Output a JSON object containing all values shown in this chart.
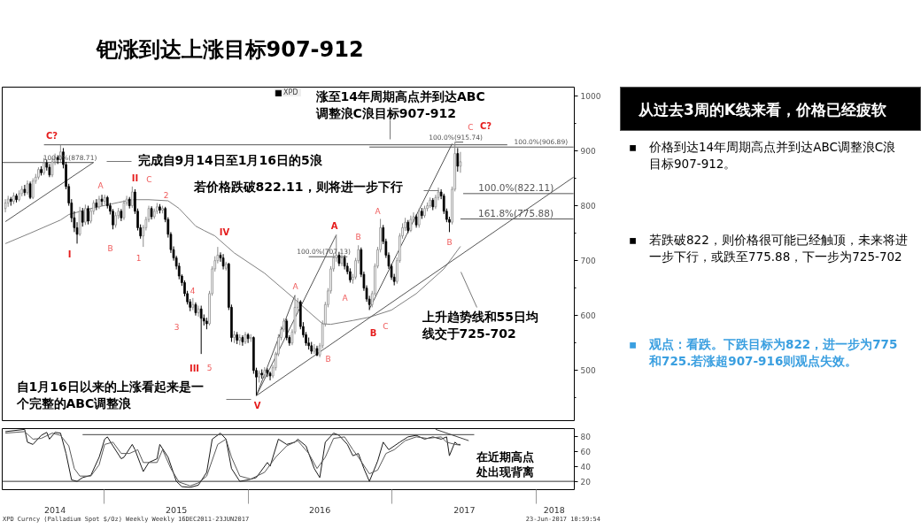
{
  "chart_data": [
    {
      "type": "candlestick",
      "title": "钯涨到达上涨目标907-912",
      "legend": "top",
      "tick_labels": "y",
      "xlim": [
        "2014-04-17",
        "2018-04-08"
      ],
      "ylim": [
        407,
        1016
      ],
      "yticks": [
        {
          "value": 450,
          "label": null
        },
        500,
        {
          "value": 550,
          "label": null
        },
        600,
        {
          "value": 650,
          "label": null
        },
        700,
        {
          "value": 750,
          "label": null
        },
        800,
        {
          "value": 850,
          "label": null
        },
        900,
        {
          "value": 950,
          "label": null
        },
        1000
      ],
      "series": [
        {
          "name": "XPD",
          "type": "candlestick",
          "x": [
            "2014-04-25",
            "2014-05-02",
            "2014-05-09",
            "2014-05-16",
            "2014-05-23",
            "2014-05-30",
            "2014-06-06",
            "2014-06-13",
            "2014-06-20",
            "2014-06-27",
            "2014-07-04",
            "2014-07-11",
            "2014-07-18",
            "2014-07-25",
            "2014-08-01",
            "2014-08-08",
            "2014-08-15",
            "2014-08-22",
            "2014-08-29",
            "2014-09-05",
            "2014-09-12",
            "2014-09-19",
            "2014-09-26",
            "2014-10-03",
            "2014-10-10",
            "2014-10-17",
            "2014-10-24",
            "2014-10-31",
            "2014-11-07",
            "2014-11-14",
            "2014-11-21",
            "2014-11-28",
            "2014-12-05",
            "2014-12-12",
            "2014-12-19",
            "2014-12-26",
            "2015-01-02",
            "2015-01-09",
            "2015-01-16",
            "2015-01-23",
            "2015-01-30",
            "2015-02-06",
            "2015-02-13",
            "2015-02-20",
            "2015-02-27",
            "2015-03-06",
            "2015-03-13",
            "2015-03-20",
            "2015-03-27",
            "2015-04-03",
            "2015-04-10",
            "2015-04-17",
            "2015-04-24",
            "2015-05-01",
            "2015-05-08",
            "2015-05-15",
            "2015-05-22",
            "2015-05-29",
            "2015-06-05",
            "2015-06-12",
            "2015-06-19",
            "2015-06-26",
            "2015-07-03",
            "2015-07-10",
            "2015-07-17",
            "2015-07-24",
            "2015-07-31",
            "2015-08-07",
            "2015-08-14",
            "2015-08-21",
            "2015-08-28",
            "2015-09-04",
            "2015-09-11",
            "2015-09-18",
            "2015-09-25",
            "2015-10-02",
            "2015-10-09",
            "2015-10-16",
            "2015-10-23",
            "2015-10-30",
            "2015-11-06",
            "2015-11-13",
            "2015-11-20",
            "2015-11-27",
            "2015-12-04",
            "2015-12-11",
            "2015-12-18",
            "2015-12-25",
            "2016-01-01",
            "2016-01-08",
            "2016-01-15",
            "2016-01-22",
            "2016-01-29",
            "2016-02-05",
            "2016-02-12",
            "2016-02-19",
            "2016-02-26",
            "2016-03-04",
            "2016-03-11",
            "2016-03-18",
            "2016-03-25",
            "2016-04-01",
            "2016-04-08",
            "2016-04-15",
            "2016-04-22",
            "2016-04-29",
            "2016-05-06",
            "2016-05-13",
            "2016-05-20",
            "2016-05-27",
            "2016-06-03",
            "2016-06-10",
            "2016-06-17",
            "2016-06-24",
            "2016-07-01",
            "2016-07-08",
            "2016-07-15",
            "2016-07-22",
            "2016-07-29",
            "2016-08-05",
            "2016-08-12",
            "2016-08-19",
            "2016-08-26",
            "2016-09-02",
            "2016-09-09",
            "2016-09-16",
            "2016-09-23",
            "2016-09-30",
            "2016-10-07",
            "2016-10-14",
            "2016-10-21",
            "2016-10-28",
            "2016-11-04",
            "2016-11-11",
            "2016-11-18",
            "2016-11-25",
            "2016-12-02",
            "2016-12-09",
            "2016-12-16",
            "2016-12-23",
            "2016-12-30",
            "2017-01-06",
            "2017-01-13",
            "2017-01-20",
            "2017-01-27",
            "2017-02-03",
            "2017-02-10",
            "2017-02-17",
            "2017-02-24",
            "2017-03-03",
            "2017-03-10",
            "2017-03-17",
            "2017-03-24",
            "2017-03-31",
            "2017-04-07",
            "2017-04-14",
            "2017-04-21",
            "2017-04-28",
            "2017-05-05",
            "2017-05-12",
            "2017-05-19",
            "2017-05-26",
            "2017-06-02",
            "2017-06-09",
            "2017-06-16",
            "2017-06-23"
          ],
          "ohlc": [
            [
              795,
              812,
              788,
              805
            ],
            [
              805,
              818,
              798,
              812
            ],
            [
              812,
              816,
              800,
              808
            ],
            [
              808,
              824,
              803,
              818
            ],
            [
              818,
              822,
              806,
              811
            ],
            [
              811,
              828,
              808,
              822
            ],
            [
              822,
              836,
              817,
              830
            ],
            [
              830,
              838,
              818,
              824
            ],
            [
              824,
              846,
              820,
              840
            ],
            [
              840,
              844,
              812,
              815
            ],
            [
              815,
              850,
              812,
              845
            ],
            [
              845,
              858,
              840,
              852
            ],
            [
              852,
              870,
              848,
              866
            ],
            [
              866,
              872,
              855,
              860
            ],
            [
              860,
              887,
              856,
              878
            ],
            [
              878,
              884,
              864,
              870
            ],
            [
              870,
              876,
              852,
              856
            ],
            [
              856,
              886,
              852,
              880
            ],
            [
              880,
              895,
              874,
              888
            ],
            [
              888,
              892,
              876,
              884
            ],
            [
              884,
              911,
              880,
              898
            ],
            [
              898,
              905,
              868,
              875
            ],
            [
              875,
              880,
              830,
              835
            ],
            [
              835,
              840,
              800,
              805
            ],
            [
              805,
              812,
              770,
              778
            ],
            [
              778,
              790,
              752,
              760
            ],
            [
              760,
              770,
              731,
              748
            ],
            [
              748,
              798,
              745,
              790
            ],
            [
              790,
              796,
              762,
              770
            ],
            [
              770,
              802,
              765,
              795
            ],
            [
              795,
              800,
              766,
              772
            ],
            [
              772,
              796,
              768,
              790
            ],
            [
              790,
              810,
              784,
              805
            ],
            [
              805,
              812,
              792,
              798
            ],
            [
              798,
              818,
              794,
              812
            ],
            [
              812,
              820,
              800,
              808
            ],
            [
              808,
              820,
              802,
              815
            ],
            [
              815,
              818,
              795,
              800
            ],
            [
              800,
              805,
              784,
              790
            ],
            [
              790,
              794,
              757,
              765
            ],
            [
              765,
              788,
              760,
              782
            ],
            [
              782,
              796,
              776,
              790
            ],
            [
              790,
              794,
              772,
              778
            ],
            [
              778,
              810,
              774,
              805
            ],
            [
              805,
              818,
              800,
              812
            ],
            [
              812,
              816,
              795,
              800
            ],
            [
              800,
              835,
              796,
              825
            ],
            [
              825,
              830,
              785,
              790
            ],
            [
              790,
              795,
              755,
              760
            ],
            [
              760,
              766,
              740,
              745
            ],
            [
              745,
              765,
              725,
              760
            ],
            [
              760,
              780,
              755,
              775
            ],
            [
              775,
              800,
              770,
              795
            ],
            [
              795,
              799,
              775,
              780
            ],
            [
              780,
              795,
              776,
              790
            ],
            [
              790,
              805,
              785,
              798
            ],
            [
              798,
              803,
              786,
              792
            ],
            [
              792,
              800,
              786,
              795
            ],
            [
              795,
              798,
              770,
              775
            ],
            [
              775,
              779,
              742,
              748
            ],
            [
              748,
              752,
              714,
              720
            ],
            [
              720,
              726,
              700,
              705
            ],
            [
              705,
              709,
              684,
              690
            ],
            [
              690,
              696,
              666,
              672
            ],
            [
              672,
              675,
              654,
              660
            ],
            [
              660,
              664,
              635,
              640
            ],
            [
              640,
              645,
              620,
              625
            ],
            [
              625,
              630,
              608,
              615
            ],
            [
              615,
              632,
              610,
              620
            ],
            [
              620,
              624,
              600,
              605
            ],
            [
              605,
              618,
              598,
              612
            ],
            [
              612,
              618,
              530,
              595
            ],
            [
              595,
              602,
              582,
              590
            ],
            [
              590,
              596,
              575,
              585
            ],
            [
              585,
              645,
              582,
              640
            ],
            [
              640,
              690,
              636,
              685
            ],
            [
              685,
              708,
              680,
              700
            ],
            [
              700,
              725,
              695,
              710
            ],
            [
              710,
              715,
              698,
              705
            ],
            [
              705,
              712,
              684,
              690
            ],
            [
              686,
              698,
              682,
              694
            ],
            [
              694,
              696,
              610,
              615
            ],
            [
              615,
              620,
              552,
              560
            ],
            [
              560,
              572,
              550,
              565
            ],
            [
              565,
              570,
              548,
              555
            ],
            [
              555,
              566,
              546,
              560
            ],
            [
              560,
              564,
              545,
              552
            ],
            [
              552,
              570,
              548,
              565
            ],
            [
              565,
              568,
              550,
              558
            ],
            [
              558,
              566,
              552,
              560
            ],
            [
              560,
              562,
              494,
              500
            ],
            [
              500,
              505,
              455,
              488
            ],
            [
              488,
              500,
              478,
              495
            ],
            [
              495,
              502,
              485,
              492
            ],
            [
              492,
              506,
              486,
              500
            ],
            [
              500,
              504,
              488,
              495
            ],
            [
              495,
              498,
              482,
              490
            ],
            [
              490,
              510,
              486,
              505
            ],
            [
              505,
              534,
              500,
              530
            ],
            [
              530,
              566,
              526,
              560
            ],
            [
              560,
              580,
              555,
              575
            ],
            [
              575,
              595,
              570,
              590
            ],
            [
              590,
              594,
              555,
              560
            ],
            [
              560,
              564,
              545,
              550
            ],
            [
              550,
              575,
              546,
              570
            ],
            [
              570,
              637,
              566,
              615
            ],
            [
              615,
              632,
              606,
              625
            ],
            [
              625,
              628,
              575,
              580
            ],
            [
              580,
              588,
              560,
              565
            ],
            [
              565,
              570,
              545,
              550
            ],
            [
              550,
              560,
              538,
              545
            ],
            [
              545,
              552,
              530,
              535
            ],
            [
              535,
              548,
              530,
              540
            ],
            [
              540,
              545,
              526,
              528
            ],
            [
              528,
              550,
              524,
              545
            ],
            [
              545,
              591,
              540,
              585
            ],
            [
              585,
              625,
              580,
              620
            ],
            [
              620,
              650,
              615,
              645
            ],
            [
              645,
              690,
              640,
              685
            ],
            [
              685,
              714,
              680,
              705
            ],
            [
              705,
              747,
              698,
              710
            ],
            [
              710,
              716,
              690,
              695
            ],
            [
              695,
              712,
              690,
              705
            ],
            [
              705,
              710,
              684,
              690
            ],
            [
              690,
              696,
              675,
              680
            ],
            [
              680,
              686,
              660,
              665
            ],
            [
              665,
              676,
              658,
              670
            ],
            [
              670,
              705,
              666,
              700
            ],
            [
              700,
              728,
              695,
              720
            ],
            [
              720,
              724,
              670,
              675
            ],
            [
              675,
              680,
              645,
              650
            ],
            [
              650,
              655,
              625,
              630
            ],
            [
              630,
              636,
              610,
              620
            ],
            [
              620,
              645,
              615,
              640
            ],
            [
              640,
              695,
              636,
              690
            ],
            [
              690,
              725,
              686,
              720
            ],
            [
              720,
              776,
              715,
              760
            ],
            [
              760,
              765,
              730,
              735
            ],
            [
              735,
              740,
              705,
              710
            ],
            [
              710,
              715,
              685,
              690
            ],
            [
              690,
              694,
              665,
              670
            ],
            [
              670,
              676,
              655,
              662
            ],
            [
              662,
              706,
              658,
              700
            ],
            [
              700,
              750,
              696,
              745
            ],
            [
              745,
              768,
              740,
              760
            ],
            [
              760,
              778,
              754,
              770
            ],
            [
              770,
              774,
              750,
              755
            ],
            [
              755,
              782,
              752,
              775
            ],
            [
              775,
              788,
              770,
              780
            ],
            [
              780,
              784,
              760,
              765
            ],
            [
              765,
              795,
              760,
              790
            ],
            [
              790,
              796,
              776,
              782
            ],
            [
              782,
              800,
              778,
              795
            ],
            [
              795,
              806,
              790,
              800
            ],
            [
              800,
              815,
              796,
              810
            ],
            [
              810,
              814,
              792,
              798
            ],
            [
              798,
              820,
              794,
              815
            ],
            [
              815,
              833,
              810,
              825
            ],
            [
              825,
              830,
              812,
              818
            ],
            [
              818,
              822,
              785,
              790
            ],
            [
              790,
              795,
              770,
              775
            ],
            [
              775,
              780,
              752,
              770
            ],
            [
              770,
              835,
              766,
              830
            ],
            [
              830,
              916,
              826,
              895
            ],
            [
              895,
              905,
              862,
              872
            ],
            [
              872,
              898,
              860,
              880
            ]
          ],
          "colors": [
            "#ffffff",
            "#ffffff",
            "#000000",
            "#ffffff",
            "#000000",
            "#ffffff",
            "#ffffff",
            "#000000",
            "#ffffff",
            "#000000",
            "#ffffff",
            "#ffffff",
            "#ffffff",
            "#000000",
            "#ffffff",
            "#000000",
            "#000000",
            "#ffffff",
            "#ffffff",
            "#000000",
            "#ffffff",
            "#000000",
            "#000000",
            "#000000",
            "#000000",
            "#000000",
            "#000000",
            "#ffffff",
            "#000000",
            "#ffffff",
            "#000000",
            "#ffffff",
            "#ffffff",
            "#000000",
            "#ffffff",
            "#000000",
            "#ffffff",
            "#000000",
            "#000000",
            "#000000",
            "#ffffff",
            "#ffffff",
            "#000000",
            "#ffffff",
            "#ffffff",
            "#000000",
            "#ffffff",
            "#000000",
            "#000000",
            "#000000",
            "#ffffff",
            "#ffffff",
            "#ffffff",
            "#000000",
            "#ffffff",
            "#ffffff",
            "#000000",
            "#ffffff",
            "#000000",
            "#000000",
            "#000000",
            "#000000",
            "#000000",
            "#000000",
            "#000000",
            "#000000",
            "#000000",
            "#000000",
            "#ffffff",
            "#000000",
            "#ffffff",
            "#000000",
            "#000000",
            "#000000",
            "#ffffff",
            "#ffffff",
            "#ffffff",
            "#ffffff",
            "#000000",
            "#000000",
            "#ffffff",
            "#000000",
            "#000000",
            "#ffffff",
            "#000000",
            "#ffffff",
            "#000000",
            "#ffffff",
            "#000000",
            "#ffffff",
            "#000000",
            "#000000",
            "#ffffff",
            "#000000",
            "#ffffff",
            "#000000",
            "#000000",
            "#ffffff",
            "#ffffff",
            "#ffffff",
            "#ffffff",
            "#ffffff",
            "#000000",
            "#000000",
            "#ffffff",
            "#ffffff",
            "#ffffff",
            "#000000",
            "#000000",
            "#000000",
            "#000000",
            "#000000",
            "#ffffff",
            "#000000",
            "#ffffff",
            "#ffffff",
            "#ffffff",
            "#ffffff",
            "#ffffff",
            "#ffffff",
            "#ffffff",
            "#000000",
            "#ffffff",
            "#000000",
            "#000000",
            "#000000",
            "#ffffff",
            "#ffffff",
            "#ffffff",
            "#000000",
            "#000000",
            "#000000",
            "#000000",
            "#ffffff",
            "#ffffff",
            "#ffffff",
            "#ffffff",
            "#000000",
            "#000000",
            "#000000",
            "#000000",
            "#000000",
            "#ffffff",
            "#ffffff",
            "#ffffff",
            "#ffffff",
            "#000000",
            "#ffffff",
            "#ffffff",
            "#000000",
            "#ffffff",
            "#000000",
            "#ffffff",
            "#ffffff",
            "#ffffff",
            "#000000",
            "#ffffff",
            "#ffffff",
            "#000000",
            "#000000",
            "#000000",
            "#000000",
            "#ffffff",
            "#ffffff",
            "#000000",
            "#ffffff"
          ]
        },
        {
          "type": "line",
          "color": "#808080",
          "x": [
            "2014-04-25",
            "2014-06-27",
            "2014-09-12",
            "2014-10-03",
            "2014-11-28",
            "2015-02-06",
            "2015-03-13",
            "2015-04-24",
            "2015-06-12",
            "2015-07-10",
            "2015-08-21",
            "2015-09-11",
            "2015-10-09",
            "2015-10-23",
            "2015-11-27",
            "2016-02-12",
            "2016-04-22",
            "2016-06-03",
            "2016-07-08",
            "2016-07-29",
            "2016-09-23",
            "2016-11-04",
            "2016-12-30",
            "2017-03-03",
            "2017-05-12",
            "2017-06-23"
          ],
          "values": [
            731,
            750,
            774,
            784,
            795,
            806,
            811,
            811,
            809,
            795,
            763,
            755,
            745,
            736,
            714,
            677,
            634,
            607,
            585,
            584,
            591,
            597,
            610,
            640,
            685,
            726
          ]
        },
        {
          "type": "line",
          "color": "#555555",
          "x": [
            "2014-04-25",
            "2014-12-05"
          ],
          "values": [
            771,
            879
          ]
        },
        {
          "type": "line",
          "color": "#555555",
          "x": [
            "2016-01-22",
            "2018-04-06"
          ],
          "values": [
            454,
            852
          ]
        },
        {
          "type": "line",
          "color": "#555555",
          "x": [
            "2016-01-22",
            "2016-08-12"
          ],
          "values": [
            454,
            747
          ]
        },
        {
          "type": "line",
          "color": "#555555",
          "x": [
            "2016-01-22",
            "2016-04-29"
          ],
          "values": [
            454,
            637
          ]
        },
        {
          "type": "line",
          "color": "#555555",
          "x": [
            "2016-11-04",
            "2017-06-02"
          ],
          "values": [
            612,
            913
          ]
        },
        {
          "type": "line",
          "color": "#555555",
          "x": [
            "2014-08-01",
            "2017-10-20"
          ],
          "values": [
            911,
            911
          ]
        },
        {
          "type": "line",
          "name": "100.0%(878.71)",
          "color": "#555555",
          "x": [
            "2014-04-18",
            "2014-12-05"
          ],
          "values": [
            878.71,
            878.71
          ]
        },
        {
          "type": "line",
          "name": "100.0%(906.89)",
          "color": "#555555",
          "x": [
            "2016-11-04",
            "2018-04-06"
          ],
          "values": [
            906.89,
            906.89
          ]
        },
        {
          "type": "line",
          "name": "100.0%(915.74)",
          "color": "#555555",
          "x": [
            "2017-06-09",
            "2017-06-30"
          ],
          "values": [
            915.74,
            915.74
          ]
        },
        {
          "type": "line",
          "name": "100.0%(822.11)",
          "color": "#555555",
          "x": [
            "2017-06-30",
            "2018-04-06"
          ],
          "values": [
            822.11,
            822.11
          ]
        },
        {
          "type": "line",
          "name": "161.8%(775.88)",
          "color": "#555555",
          "x": [
            "2017-06-23",
            "2018-04-06"
          ],
          "values": [
            775.88,
            775.88
          ]
        },
        {
          "type": "line",
          "name": "100.0%(707.13)",
          "color": "#555555",
          "x": [
            "2016-06-03",
            "2016-09-09"
          ],
          "values": [
            707.13,
            707.13
          ]
        }
      ],
      "annotations": [
        "C?",
        "I",
        "A",
        "B",
        "II",
        "C",
        "1",
        "2",
        "3",
        "4",
        "III",
        "5",
        "IV",
        "V",
        "A",
        "B",
        "A",
        "A",
        "B",
        "A",
        "B",
        "C",
        "B",
        "C",
        "C?",
        "完成自9月14日至1月16日的5浪",
        "若价格跌破822.11，则将进一步下行",
        "涨至14年周期高点并到达ABC调整浪C浪目标907-912",
        "上升趋势线和55日均线交于725-702",
        "自1月16日以来的上涨看起来是一个完整的ABC调整浪"
      ]
    },
    {
      "type": "line",
      "xlim": [
        "2014-04-17",
        "2018-04-08"
      ],
      "ylim": [
        9,
        90
      ],
      "yticks": [
        20,
        40,
        60,
        80
      ],
      "xticks": [
        {
          "value": "2014-08-29",
          "label": "2014"
        },
        {
          "value": "2015-01-01",
          "label": null
        },
        {
          "value": "2015-07-03",
          "label": "2015"
        },
        {
          "value": "2016-01-01",
          "label": null
        },
        {
          "value": "2016-07-01",
          "label": "2016"
        },
        {
          "value": "2017-01-01",
          "label": null
        },
        {
          "value": "2017-07-03",
          "label": "2017"
        },
        {
          "value": "2018-01-01",
          "label": null
        },
        {
          "value": "2018-02-16",
          "label": "2018"
        }
      ],
      "ref_lines": [
        {
          "axis": "y",
          "value": 20,
          "color": "#333333"
        }
      ],
      "series": [
        {
          "color": "#1a1a1a",
          "x": [
            "2014-04-25",
            "2014-06-13",
            "2014-06-20",
            "2014-07-04",
            "2014-07-25",
            "2014-08-08",
            "2014-08-15",
            "2014-08-29",
            "2014-09-12",
            "2014-09-26",
            "2014-10-10",
            "2014-10-24",
            "2014-11-07",
            "2014-11-28",
            "2014-12-19",
            "2015-01-02",
            "2015-01-09",
            "2015-01-23",
            "2015-02-13",
            "2015-02-20",
            "2015-03-13",
            "2015-03-20",
            "2015-04-10",
            "2015-04-24",
            "2015-05-15",
            "2015-05-22",
            "2015-06-12",
            "2015-07-03",
            "2015-07-17",
            "2015-08-07",
            "2015-08-28",
            "2015-09-18",
            "2015-10-02",
            "2015-10-23",
            "2015-11-06",
            "2015-11-20",
            "2015-12-11",
            "2016-01-01",
            "2016-01-22",
            "2016-02-19",
            "2016-02-26",
            "2016-03-18",
            "2016-04-08",
            "2016-04-29",
            "2016-05-06",
            "2016-05-27",
            "2016-06-17",
            "2016-07-01",
            "2016-07-15",
            "2016-08-05",
            "2016-08-19",
            "2016-09-09",
            "2016-09-23",
            "2016-10-07",
            "2016-10-21",
            "2016-11-04",
            "2016-11-25",
            "2016-12-09",
            "2016-12-23",
            "2017-01-20",
            "2017-02-10",
            "2017-03-03",
            "2017-03-24",
            "2017-04-14",
            "2017-05-05",
            "2017-05-19",
            "2017-05-26",
            "2017-06-09",
            "2017-06-16",
            "2017-06-23"
          ],
          "values": [
            86,
            89,
            72,
            69,
            81,
            85,
            76,
            85,
            84,
            57,
            22,
            20,
            25,
            28,
            52,
            76,
            79,
            67,
            50,
            52,
            69,
            62,
            33,
            45,
            50,
            69,
            52,
            20,
            13,
            12,
            15,
            32,
            76,
            84,
            76,
            37,
            20,
            22,
            25,
            45,
            40,
            76,
            69,
            72,
            76,
            67,
            37,
            25,
            72,
            84,
            81,
            69,
            54,
            57,
            37,
            20,
            47,
            72,
            62,
            72,
            79,
            81,
            76,
            79,
            76,
            79,
            54,
            72,
            69,
            69
          ]
        },
        {
          "color": "#5a5a5a",
          "x": [
            "2014-04-25",
            "2014-06-13",
            "2014-07-04",
            "2014-07-25",
            "2014-08-22",
            "2014-09-12",
            "2014-10-03",
            "2014-10-17",
            "2014-10-31",
            "2014-11-28",
            "2014-12-19",
            "2015-01-02",
            "2015-01-23",
            "2015-02-13",
            "2015-03-06",
            "2015-03-27",
            "2015-04-10",
            "2015-05-15",
            "2015-05-29",
            "2015-06-19",
            "2015-07-10",
            "2015-08-07",
            "2015-08-28",
            "2015-09-18",
            "2015-10-16",
            "2015-11-06",
            "2015-11-20",
            "2015-12-11",
            "2016-01-08",
            "2016-02-12",
            "2016-03-11",
            "2016-04-08",
            "2016-05-06",
            "2016-06-03",
            "2016-06-24",
            "2016-07-15",
            "2016-08-05",
            "2016-09-02",
            "2016-09-23",
            "2016-10-07",
            "2016-11-04",
            "2016-11-25",
            "2016-12-16",
            "2017-01-06",
            "2017-02-03",
            "2017-03-03",
            "2017-03-31",
            "2017-05-05",
            "2017-05-19",
            "2017-06-09",
            "2017-06-23"
          ],
          "values": [
            84,
            86,
            76,
            77,
            84,
            81,
            67,
            37,
            27,
            27,
            42,
            69,
            72,
            57,
            57,
            62,
            45,
            45,
            62,
            37,
            19,
            14,
            18,
            27,
            69,
            76,
            52,
            27,
            23,
            32,
            52,
            67,
            74,
            57,
            37,
            52,
            77,
            79,
            62,
            52,
            30,
            35,
            57,
            62,
            74,
            79,
            77,
            79,
            72,
            69,
            68
          ]
        },
        {
          "color": "#404040",
          "x": [
            "2014-11-07",
            "2017-07-28"
          ],
          "values": [
            82,
            82
          ]
        },
        {
          "color": "#404040",
          "x": [
            "2017-04-21",
            "2017-07-14"
          ],
          "values": [
            89,
            74
          ]
        }
      ],
      "annotations": [
        "在近期高点处出现背离",
        "XPD Curncy (Palladium Spot $/Oz) Weekly Weekly 16DEC2011-23JUN2017",
        "23-Jun-2017 10:59:54"
      ]
    },
    {
      "type": "other",
      "title": "从过去3周的K线来看，价格已经疲软",
      "colors": [
        "#000000",
        "#000000",
        "#3a9fe0"
      ],
      "annotations": [
        "▪ 价格到达14年周期高点并到达ABC调整浪C浪目标907-912。",
        "▪ 若跌破822，则价格很可能已经触顶，未来将进一步下行，或跌至775.88，下一步为725-702",
        "▪ 观点：看跌。下跌目标为822，进一步为775和725.若涨超907-916则观点失效。"
      ]
    }
  ]
}
